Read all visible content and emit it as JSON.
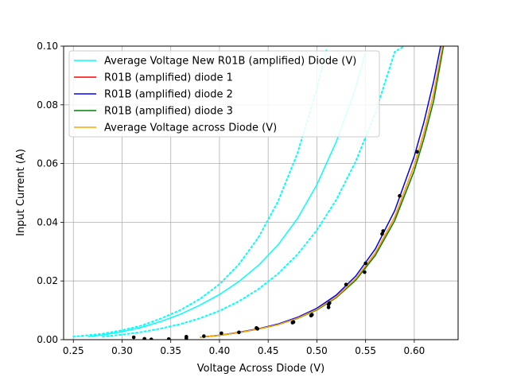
{
  "chart_data": {
    "type": "line",
    "title": "",
    "xlabel": "Voltage Across Diode (V)",
    "ylabel": "Input Current (A)",
    "xlim": [
      0.24,
      0.645
    ],
    "ylim": [
      0.0,
      0.1
    ],
    "x_ticks": [
      "0.25",
      "0.30",
      "0.35",
      "0.40",
      "0.45",
      "0.50",
      "0.55",
      "0.60"
    ],
    "y_ticks": [
      "0.00",
      "0.02",
      "0.04",
      "0.06",
      "0.08",
      "0.10"
    ],
    "grid": true,
    "legend_position": "upper-left",
    "series": [
      {
        "name": "Average Voltage New R01B (amplified) Diode (V)",
        "color": "#00ffff",
        "style": "solid",
        "x": [
          0.265,
          0.28,
          0.3,
          0.32,
          0.34,
          0.36,
          0.38,
          0.4,
          0.42,
          0.44,
          0.46,
          0.48,
          0.5,
          0.52,
          0.54,
          0.55
        ],
        "y": [
          0.001,
          0.0016,
          0.0027,
          0.0042,
          0.0062,
          0.0087,
          0.0118,
          0.0154,
          0.0198,
          0.0253,
          0.0322,
          0.0412,
          0.0528,
          0.0675,
          0.086,
          0.098
        ]
      },
      {
        "name": "",
        "color": "#00ffff",
        "style": "dotted",
        "x": [
          0.25,
          0.28,
          0.3,
          0.32,
          0.34,
          0.36,
          0.38,
          0.4,
          0.42,
          0.44,
          0.46,
          0.48,
          0.5,
          0.51
        ],
        "y": [
          0.001,
          0.002,
          0.0032,
          0.0048,
          0.0072,
          0.0101,
          0.0139,
          0.0189,
          0.0257,
          0.0348,
          0.047,
          0.0634,
          0.0855,
          0.099
        ]
      },
      {
        "name": "",
        "color": "#00ffff",
        "style": "dotted",
        "x": [
          0.28,
          0.3,
          0.32,
          0.34,
          0.36,
          0.38,
          0.4,
          0.42,
          0.44,
          0.46,
          0.48,
          0.5,
          0.52,
          0.54,
          0.56,
          0.58,
          0.59
        ],
        "y": [
          0.001,
          0.0017,
          0.0026,
          0.0038,
          0.0053,
          0.0073,
          0.0098,
          0.0131,
          0.0172,
          0.0224,
          0.029,
          0.0373,
          0.0477,
          0.0608,
          0.0773,
          0.0981,
          0.1
        ]
      },
      {
        "name": "R01B (amplified) diode 1",
        "color": "#ff0000",
        "style": "solid",
        "x": [
          0.38,
          0.4,
          0.42,
          0.44,
          0.46,
          0.48,
          0.5,
          0.52,
          0.54,
          0.56,
          0.58,
          0.6,
          0.61,
          0.62,
          0.629
        ],
        "y": [
          0.0008,
          0.0015,
          0.0024,
          0.0036,
          0.0051,
          0.0073,
          0.0103,
          0.0146,
          0.0208,
          0.0295,
          0.0418,
          0.0594,
          0.0705,
          0.084,
          0.1
        ]
      },
      {
        "name": "R01B (amplified) diode 2",
        "color": "#0000ff",
        "style": "solid",
        "x": [
          0.38,
          0.4,
          0.42,
          0.44,
          0.46,
          0.48,
          0.5,
          0.52,
          0.54,
          0.56,
          0.58,
          0.6,
          0.61,
          0.62,
          0.627
        ],
        "y": [
          0.0008,
          0.0015,
          0.0025,
          0.0037,
          0.0053,
          0.0076,
          0.0107,
          0.0152,
          0.0217,
          0.0309,
          0.044,
          0.0625,
          0.0742,
          0.0882,
          0.1
        ]
      },
      {
        "name": "R01B (amplified) diode 3",
        "color": "#008000",
        "style": "solid",
        "x": [
          0.38,
          0.4,
          0.42,
          0.44,
          0.46,
          0.48,
          0.5,
          0.52,
          0.54,
          0.56,
          0.58,
          0.6,
          0.61,
          0.62,
          0.63
        ],
        "y": [
          0.0008,
          0.0015,
          0.0024,
          0.0036,
          0.0051,
          0.0072,
          0.0101,
          0.0143,
          0.0203,
          0.0287,
          0.0406,
          0.0576,
          0.0685,
          0.0815,
          0.1
        ]
      },
      {
        "name": "Average Voltage across Diode (V)",
        "color": "#ffa500",
        "style": "solid",
        "x": [
          0.38,
          0.4,
          0.42,
          0.44,
          0.46,
          0.48,
          0.5,
          0.52,
          0.54,
          0.56,
          0.58,
          0.6,
          0.61,
          0.62,
          0.629
        ],
        "y": [
          0.0008,
          0.0015,
          0.0024,
          0.0036,
          0.0051,
          0.0073,
          0.0103,
          0.0146,
          0.0208,
          0.0295,
          0.0418,
          0.0594,
          0.0705,
          0.084,
          0.1
        ]
      }
    ],
    "scatter": {
      "color": "#000000",
      "x": [
        0.312,
        0.323,
        0.33,
        0.348,
        0.366,
        0.366,
        0.384,
        0.402,
        0.42,
        0.438,
        0.439,
        0.475,
        0.476,
        0.494,
        0.495,
        0.512,
        0.512,
        0.513,
        0.53,
        0.549,
        0.55,
        0.567,
        0.568,
        0.585,
        0.603
      ],
      "y": [
        0.0008,
        0.0003,
        0.0001,
        0.0002,
        0.0005,
        0.001,
        0.0012,
        0.0022,
        0.0025,
        0.004,
        0.0037,
        0.0058,
        0.006,
        0.0082,
        0.0085,
        0.011,
        0.012,
        0.0125,
        0.0188,
        0.023,
        0.026,
        0.036,
        0.037,
        0.049,
        0.064
      ]
    }
  }
}
